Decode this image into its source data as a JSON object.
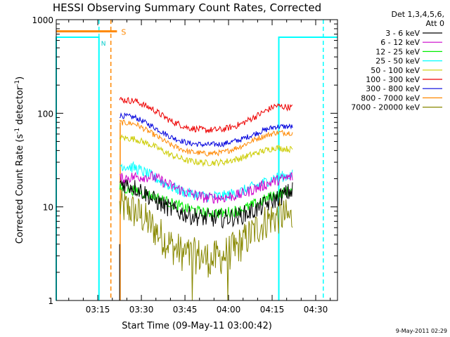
{
  "chart_data": {
    "type": "line",
    "title": "HESSI Observing Summary Count Rates, Corrected",
    "xlabel": "Start Time (09-May-11 03:00:42)",
    "ylabel": "Corrected Count Rate (s⁻¹ detector⁻¹)",
    "ylabel_parts": [
      "Corrected Count Rate (s",
      "-1",
      " detector",
      "-1",
      ")"
    ],
    "y_scale": "log",
    "ylim": [
      1,
      1000
    ],
    "xlim_minutes": [
      0.7,
      97.5
    ],
    "x_ticks": [
      "03:15",
      "03:30",
      "03:45",
      "04:00",
      "04:15",
      "04:30"
    ],
    "x_tick_minutes": [
      15,
      30,
      45,
      60,
      75,
      90
    ],
    "y_ticks": [
      "1",
      "10",
      "100",
      "1000"
    ],
    "y_tick_values": [
      1,
      10,
      100,
      1000
    ],
    "legend_header": [
      "Det 1,3,4,5,6,",
      "Att 0"
    ],
    "legend_placement": "right",
    "timestamp": "9-May-2011 02:29",
    "flag_label": "S",
    "marker_label": "N",
    "series": [
      {
        "name": "3 - 6 keV",
        "color": "#000000",
        "start": 22.5,
        "a": 4.5e-05,
        "b": 0.02,
        "noise": 0.1,
        "knot_t": [
          22.5,
          26,
          30,
          34,
          40,
          46,
          52,
          58,
          64,
          70,
          76,
          82
        ],
        "knot_v": [
          18,
          17,
          15,
          12,
          9.5,
          8.2,
          7.6,
          7.5,
          8.0,
          9.5,
          12,
          15
        ]
      },
      {
        "name": "6 - 12 keV",
        "color": "#cc00cc",
        "start": 22.5,
        "a": 3.8e-05,
        "b": 0.02,
        "noise": 0.06,
        "knot_t": [
          22.5,
          28,
          34,
          40,
          46,
          52,
          58,
          64,
          70,
          76,
          82
        ],
        "knot_v": [
          20,
          21,
          21,
          17,
          14,
          12.5,
          12.5,
          13.5,
          16,
          19,
          21
        ]
      },
      {
        "name": "12 - 25 keV",
        "color": "#00ee00",
        "start": 22.5,
        "a": 3.8e-05,
        "b": 0.02,
        "noise": 0.06,
        "knot_t": [
          22.5,
          28,
          34,
          40,
          46,
          52,
          58,
          64,
          70,
          76,
          82
        ],
        "knot_v": [
          16,
          15,
          13,
          11,
          9.5,
          8.6,
          8.6,
          9.2,
          11,
          13.5,
          15
        ]
      },
      {
        "name": "25 - 50 keV",
        "color": "#00ffff",
        "start": 22.5,
        "a": 3.8e-05,
        "b": 0.02,
        "noise": 0.06,
        "knot_t": [
          22.5,
          28,
          34,
          40,
          46,
          52,
          58,
          64,
          70,
          76,
          82
        ],
        "knot_v": [
          28,
          26,
          21,
          16.5,
          14,
          13,
          13,
          14.5,
          17,
          20.5,
          22
        ]
      },
      {
        "name": "50 - 100 keV",
        "color": "#cccc00",
        "start": 22.5,
        "a": 3.8e-05,
        "b": 0.02,
        "noise": 0.035,
        "knot_t": [
          22.5,
          28,
          34,
          40,
          46,
          52,
          58,
          64,
          70,
          76,
          82
        ],
        "knot_v": [
          55,
          53,
          45,
          36,
          31,
          29.5,
          30,
          33,
          38,
          43,
          41
        ]
      },
      {
        "name": "100 - 300 keV",
        "color": "#ee0000",
        "start": 22.5,
        "a": 3.8e-05,
        "b": 0.02,
        "noise": 0.035,
        "knot_t": [
          22.5,
          28,
          34,
          40,
          46,
          52,
          58,
          64,
          70,
          76,
          82
        ],
        "knot_v": [
          140,
          135,
          110,
          83,
          70,
          66,
          67,
          76,
          95,
          120,
          115
        ]
      },
      {
        "name": "300 - 800 keV",
        "color": "#0000dd",
        "start": 22.5,
        "a": 3.8e-05,
        "b": 0.02,
        "noise": 0.03,
        "knot_t": [
          22.5,
          28,
          34,
          40,
          46,
          52,
          58,
          64,
          70,
          76,
          82
        ],
        "knot_v": [
          95,
          90,
          72,
          56,
          48,
          46,
          47,
          52,
          62,
          72,
          72
        ]
      },
      {
        "name": "800 - 7000 keV",
        "color": "#ff8800",
        "start": 22.5,
        "a": 3.8e-05,
        "b": 0.02,
        "noise": 0.03,
        "knot_t": [
          22.5,
          28,
          34,
          40,
          46,
          52,
          58,
          64,
          70,
          76,
          82
        ],
        "knot_v": [
          80,
          77,
          60,
          46,
          39,
          37,
          38,
          44,
          54,
          62,
          62
        ]
      },
      {
        "name": "7000 - 20000 keV",
        "color": "#888800",
        "start": 22.5,
        "a": 3.8e-05,
        "b": 0.02,
        "noise": 0.2,
        "knot_t": [
          22.5,
          26,
          30,
          34,
          38,
          42,
          46,
          50,
          54,
          58,
          62,
          66,
          70,
          74,
          78,
          82
        ],
        "knot_v": [
          10,
          9.5,
          8,
          6,
          4.5,
          3.5,
          3,
          3,
          2.7,
          3,
          3.5,
          4.5,
          6,
          7.5,
          8,
          7.5
        ]
      }
    ],
    "attenuator_level": 750,
    "attenuator_span": [
      0.7,
      21.6
    ],
    "attenuator_drop_minute": 22.7,
    "saa_intervals": [
      [
        0.7,
        15.4
      ],
      [
        77.3,
        97.5
      ]
    ],
    "saa_level": 650,
    "dashed_cyan_minutes": [
      15.4,
      92.6
    ],
    "dashed_orange_minutes": [
      19.5
    ],
    "bottom_black_minute": 22.5,
    "bottom_black_top": 4
  }
}
